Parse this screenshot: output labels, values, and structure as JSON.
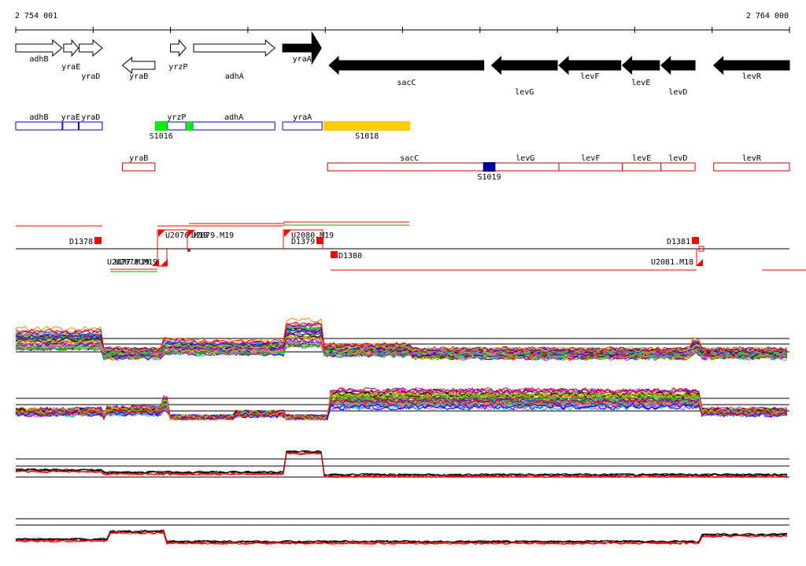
{
  "ruler": {
    "start_label": "2 754 001",
    "end_label": "2 764 000",
    "start": 2754001,
    "end": 2764000
  },
  "genes": [
    {
      "name": "adhB",
      "start": 2754001,
      "end": 2754600,
      "strand": "+",
      "filled": false
    },
    {
      "name": "yraE",
      "start": 2754620,
      "end": 2754810,
      "strand": "+",
      "filled": false
    },
    {
      "name": "yraD",
      "start": 2754820,
      "end": 2755120,
      "strand": "+",
      "filled": false
    },
    {
      "name": "yraB",
      "start": 2755380,
      "end": 2755800,
      "strand": "-",
      "filled": false
    },
    {
      "name": "yrzP",
      "start": 2756000,
      "end": 2756200,
      "strand": "+",
      "filled": false
    },
    {
      "name": "adhA",
      "start": 2756300,
      "end": 2757350,
      "strand": "+",
      "filled": false
    },
    {
      "name": "yraA",
      "start": 2757450,
      "end": 2757950,
      "strand": "+",
      "filled": true
    },
    {
      "name": "sacC",
      "start": 2758050,
      "end": 2760050,
      "strand": "-",
      "filled": true
    },
    {
      "name": "levG",
      "start": 2760150,
      "end": 2761000,
      "strand": "-",
      "filled": true
    },
    {
      "name": "levF",
      "start": 2761020,
      "end": 2761820,
      "strand": "-",
      "filled": true
    },
    {
      "name": "levE",
      "start": 2761840,
      "end": 2762320,
      "strand": "-",
      "filled": true
    },
    {
      "name": "levD",
      "start": 2762340,
      "end": 2762780,
      "strand": "-",
      "filled": true
    },
    {
      "name": "levR",
      "start": 2763020,
      "end": 2764000,
      "strand": "-",
      "filled": true
    }
  ],
  "annotation_plus": {
    "genes": [
      {
        "name": "adhB",
        "start": 2754001,
        "end": 2754600
      },
      {
        "name": "yraE",
        "start": 2754610,
        "end": 2754810
      },
      {
        "name": "yraD",
        "start": 2754820,
        "end": 2755120
      },
      {
        "name": "yrzP",
        "start": 2755960,
        "end": 2756200
      },
      {
        "name": "adhA",
        "start": 2756290,
        "end": 2757350
      },
      {
        "name": "yraA",
        "start": 2757450,
        "end": 2757960
      }
    ],
    "segments": [
      {
        "name": "S1016",
        "start": 2755800,
        "end": 2755960,
        "color": "#00ee00"
      },
      {
        "name": "",
        "start": 2756210,
        "end": 2756290,
        "color": "#00ee00"
      },
      {
        "name": "S1018",
        "start": 2757980,
        "end": 2759100,
        "color": "#ffcc00"
      }
    ]
  },
  "annotation_minus": {
    "genes": [
      {
        "name": "yraB",
        "start": 2755380,
        "end": 2755800
      },
      {
        "name": "sacC",
        "start": 2758030,
        "end": 2760150
      },
      {
        "name": "levG",
        "start": 2760150,
        "end": 2761020
      },
      {
        "name": "levF",
        "start": 2761020,
        "end": 2761840
      },
      {
        "name": "levE",
        "start": 2761840,
        "end": 2762340
      },
      {
        "name": "levD",
        "start": 2762340,
        "end": 2762780
      },
      {
        "name": "levR",
        "start": 2763020,
        "end": 2764000
      }
    ],
    "segments": [
      {
        "name": "S1019",
        "start": 2760040,
        "end": 2760200,
        "color": "#000099"
      }
    ]
  },
  "features": {
    "upper": [
      {
        "name": "D1378",
        "type": "D"
      },
      {
        "name": "U2076.M19",
        "type": "U"
      },
      {
        "name": "U2079.M19",
        "type": "U"
      },
      {
        "name": "U2080.M19",
        "type": "U"
      },
      {
        "name": "D1379",
        "type": "D"
      },
      {
        "name": "D1381",
        "type": "D"
      }
    ],
    "lower": [
      {
        "name": "U2077.M19",
        "type": "U"
      },
      {
        "name": "U2078.M19",
        "type": "U"
      },
      {
        "name": "D1380",
        "type": "D"
      },
      {
        "name": "U2081.M18",
        "type": "U"
      }
    ]
  },
  "colors": {
    "gene_plus_box": "#0000cc",
    "gene_minus_box": "#cc0000",
    "feature_red": "#ff0000",
    "feature_green": "#00aa00",
    "trace_black": "#000000",
    "trace_red": "#ff0000"
  }
}
